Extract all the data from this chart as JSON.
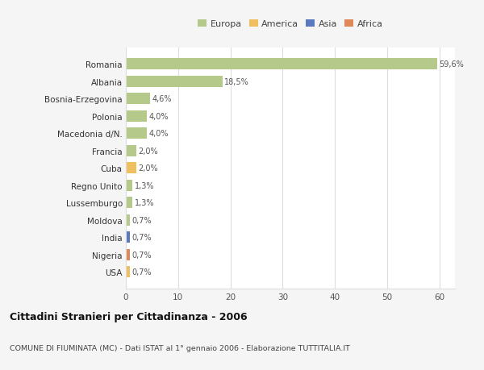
{
  "categories": [
    "Romania",
    "Albania",
    "Bosnia-Erzegovina",
    "Polonia",
    "Macedonia d/N.",
    "Francia",
    "Cuba",
    "Regno Unito",
    "Lussemburgo",
    "Moldova",
    "India",
    "Nigeria",
    "USA"
  ],
  "values": [
    59.6,
    18.5,
    4.6,
    4.0,
    4.0,
    2.0,
    2.0,
    1.3,
    1.3,
    0.7,
    0.7,
    0.7,
    0.7
  ],
  "labels": [
    "59,6%",
    "18,5%",
    "4,6%",
    "4,0%",
    "4,0%",
    "2,0%",
    "2,0%",
    "1,3%",
    "1,3%",
    "0,7%",
    "0,7%",
    "0,7%",
    "0,7%"
  ],
  "colors": [
    "#b5c98a",
    "#b5c98a",
    "#b5c98a",
    "#b5c98a",
    "#b5c98a",
    "#b5c98a",
    "#f0c060",
    "#b5c98a",
    "#b5c98a",
    "#b5c98a",
    "#5a7abf",
    "#e08858",
    "#f0c060"
  ],
  "legend_labels": [
    "Europa",
    "America",
    "Asia",
    "Africa"
  ],
  "legend_colors": [
    "#b5c98a",
    "#f0c060",
    "#5a7abf",
    "#e08858"
  ],
  "title": "Cittadini Stranieri per Cittadinanza - 2006",
  "subtitle": "COMUNE DI FIUMINATA (MC) - Dati ISTAT al 1° gennaio 2006 - Elaborazione TUTTITALIA.IT",
  "xlim": [
    0,
    63
  ],
  "background_color": "#f5f5f5",
  "plot_bg": "#ffffff",
  "grid_color": "#dddddd"
}
